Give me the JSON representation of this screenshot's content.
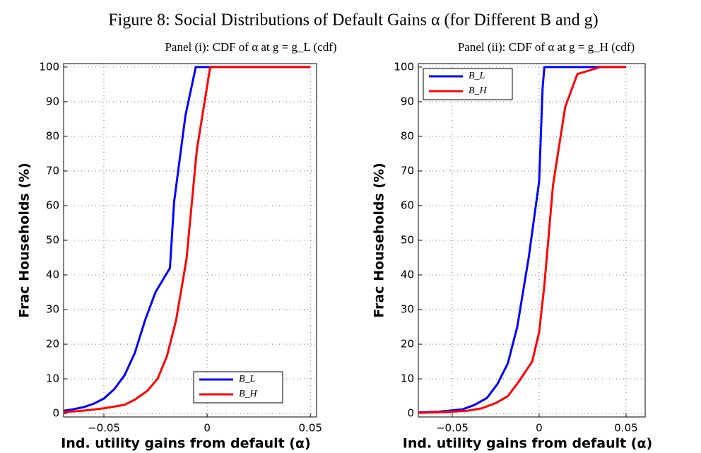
{
  "title": "Figure 8: Social Distributions of Default Gains α (for Different B and g)",
  "chart_data": [
    {
      "type": "line",
      "title": "Panel (i): CDF of α at g = g_L (cdf)",
      "xlabel": "Ind. utility gains from default (α)",
      "ylabel": "Frac Households (%)",
      "xlim": [
        -0.0695,
        0.053
      ],
      "ylim": [
        -1,
        101
      ],
      "xticks": [
        {
          "value": -0.05,
          "label": "−0.05"
        },
        0,
        0.05
      ],
      "yticks": [
        0,
        10,
        20,
        30,
        40,
        50,
        60,
        70,
        80,
        90,
        100
      ],
      "grid": true,
      "legend": "lower right",
      "series": [
        {
          "name": "B_L",
          "color": "#0000ff",
          "x": [
            -0.0695,
            -0.065,
            -0.06,
            -0.055,
            -0.05,
            -0.045,
            -0.04,
            -0.035,
            -0.03,
            -0.025,
            -0.018,
            -0.016,
            -0.0105,
            -0.0055,
            0.05
          ],
          "values": [
            0.8,
            1.2,
            1.8,
            2.8,
            4.3,
            7,
            11,
            17.5,
            27,
            35,
            42,
            61,
            86,
            100,
            100
          ]
        },
        {
          "name": "B_H",
          "color": "#ff0000",
          "x": [
            -0.0695,
            -0.06,
            -0.05,
            -0.04,
            -0.035,
            -0.029,
            -0.024,
            -0.0195,
            -0.015,
            -0.01,
            -0.005,
            0.0015,
            0.05
          ],
          "values": [
            0.4,
            0.8,
            1.5,
            2.5,
            4,
            6.5,
            10,
            16.5,
            27,
            44.5,
            76,
            100,
            100
          ]
        }
      ]
    },
    {
      "type": "line",
      "title": "Panel (ii): CDF of α at g = g_H (cdf)",
      "xlabel": "Ind. utility gains from default (α)",
      "ylabel": "Frac Households (%)",
      "xlim": [
        -0.0695,
        0.061
      ],
      "ylim": [
        -1,
        101
      ],
      "xticks": [
        {
          "value": -0.05,
          "label": "−0.05"
        },
        0,
        0.05
      ],
      "yticks": [
        0,
        10,
        20,
        30,
        40,
        50,
        60,
        70,
        80,
        90,
        100
      ],
      "grid": true,
      "legend": "upper left",
      "series": [
        {
          "name": "B_L",
          "color": "#0000ff",
          "x": [
            -0.0695,
            -0.058,
            -0.044,
            -0.037,
            -0.03,
            -0.024,
            -0.018,
            -0.0126,
            -0.006,
            0,
            0.002,
            0.003,
            0.05
          ],
          "values": [
            0.3,
            0.5,
            1.2,
            2.5,
            4.5,
            8.5,
            14.5,
            25,
            45,
            67,
            94,
            100,
            100
          ]
        },
        {
          "name": "B_H",
          "color": "#ff0000",
          "x": [
            -0.0695,
            -0.054,
            -0.041,
            -0.033,
            -0.025,
            -0.018,
            -0.012,
            -0.004,
            0,
            0.003,
            0.008,
            0.015,
            0.022,
            0.0255,
            0.035,
            0.05
          ],
          "values": [
            0.2,
            0.4,
            0.8,
            1.5,
            3,
            5,
            9,
            15,
            23.5,
            37,
            66,
            88.5,
            98,
            98.5,
            100,
            100
          ]
        }
      ]
    }
  ]
}
